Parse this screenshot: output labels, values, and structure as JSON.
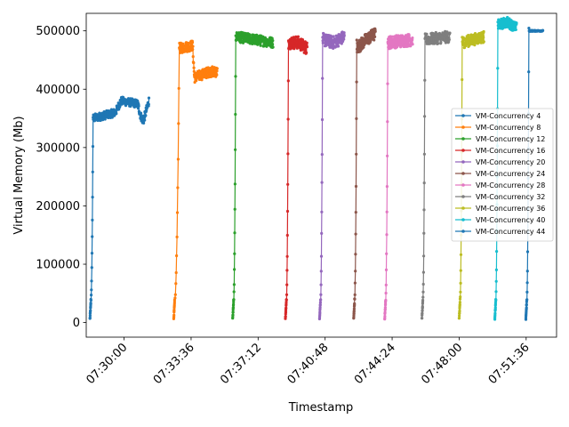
{
  "chart_data": {
    "type": "line",
    "title": "",
    "xlabel": "Timestamp",
    "ylabel": "Virtual Memory (Mb)",
    "ylim": [
      -25000,
      530000
    ],
    "y_ticks": [
      0,
      100000,
      200000,
      300000,
      400000,
      500000
    ],
    "x_ticks": [
      "07:30:00",
      "07:33:36",
      "07:37:12",
      "07:40:48",
      "07:44:24",
      "07:48:00",
      "07:51:36"
    ],
    "xlim": [
      "07:27:58",
      "07:53:14"
    ],
    "grid": false,
    "legend_position": "center-right",
    "series": [
      {
        "name": "VM-Concurrency 4",
        "color": "#1f77b4",
        "x_start": "07:28:10",
        "x_end": "07:31:20",
        "ramp_end": "07:28:20",
        "high": 350000,
        "plateau": [
          [
            0,
            350000
          ],
          [
            0.4,
            360000
          ],
          [
            0.5,
            380000
          ],
          [
            0.8,
            375000
          ],
          [
            0.85,
            355000
          ],
          [
            0.9,
            345000
          ],
          [
            1,
            380000
          ]
        ],
        "noise": 7000
      },
      {
        "name": "VM-Concurrency 8",
        "color": "#ff7f0e",
        "x_start": "07:32:40",
        "x_end": "07:35:00",
        "ramp_end": "07:32:58",
        "high": 470000,
        "plateau": [
          [
            0,
            470000
          ],
          [
            0.35,
            475000
          ],
          [
            0.4,
            420000
          ],
          [
            0.6,
            425000
          ],
          [
            0.8,
            430000
          ],
          [
            1,
            430000
          ]
        ],
        "noise": 9000
      },
      {
        "name": "VM-Concurrency 12",
        "color": "#2ca02c",
        "x_start": "07:35:50",
        "x_end": "07:38:00",
        "ramp_end": "07:36:00",
        "high": 490000,
        "plateau": [
          [
            0,
            490000
          ],
          [
            0.5,
            485000
          ],
          [
            1,
            480000
          ]
        ],
        "noise": 9000
      },
      {
        "name": "VM-Concurrency 16",
        "color": "#d62728",
        "x_start": "07:38:40",
        "x_end": "07:39:50",
        "ramp_end": "07:38:50",
        "high": 480000,
        "plateau": [
          [
            0,
            480000
          ],
          [
            0.5,
            480000
          ],
          [
            1,
            470000
          ]
        ],
        "noise": 11000
      },
      {
        "name": "VM-Concurrency 20",
        "color": "#9467bd",
        "x_start": "07:40:30",
        "x_end": "07:41:50",
        "ramp_end": "07:40:40",
        "high": 485000,
        "plateau": [
          [
            0,
            485000
          ],
          [
            0.5,
            480000
          ],
          [
            1,
            490000
          ]
        ],
        "noise": 11000
      },
      {
        "name": "VM-Concurrency 24",
        "color": "#8c564b",
        "x_start": "07:42:20",
        "x_end": "07:43:30",
        "ramp_end": "07:42:30",
        "high": 480000,
        "plateau": [
          [
            0,
            470000
          ],
          [
            0.5,
            485000
          ],
          [
            1,
            495000
          ]
        ],
        "noise": 11000
      },
      {
        "name": "VM-Concurrency 28",
        "color": "#e377c2",
        "x_start": "07:44:00",
        "x_end": "07:45:30",
        "ramp_end": "07:44:10",
        "high": 480000,
        "plateau": [
          [
            0,
            480000
          ],
          [
            1,
            485000
          ]
        ],
        "noise": 11000
      },
      {
        "name": "VM-Concurrency 32",
        "color": "#7f7f7f",
        "x_start": "07:46:00",
        "x_end": "07:47:30",
        "ramp_end": "07:46:10",
        "high": 485000,
        "plateau": [
          [
            0,
            485000
          ],
          [
            1,
            490000
          ]
        ],
        "noise": 10000
      },
      {
        "name": "VM-Concurrency 36",
        "color": "#bcbd22",
        "x_start": "07:48:00",
        "x_end": "07:49:20",
        "ramp_end": "07:48:10",
        "high": 485000,
        "plateau": [
          [
            0,
            480000
          ],
          [
            1,
            490000
          ]
        ],
        "noise": 10000
      },
      {
        "name": "VM-Concurrency 40",
        "color": "#17becf",
        "x_start": "07:49:55",
        "x_end": "07:51:05",
        "ramp_end": "07:50:05",
        "high": 510000,
        "plateau": [
          [
            0,
            510000
          ],
          [
            0.5,
            515000
          ],
          [
            1,
            505000
          ]
        ],
        "noise": 9000
      },
      {
        "name": "VM-Concurrency 44",
        "color": "#1f77b4",
        "x_start": "07:51:35",
        "x_end": "07:52:30",
        "ramp_end": "07:51:45",
        "high": 500000,
        "plateau": [
          [
            0,
            500000
          ],
          [
            1,
            500000
          ]
        ],
        "noise": 800
      }
    ]
  }
}
